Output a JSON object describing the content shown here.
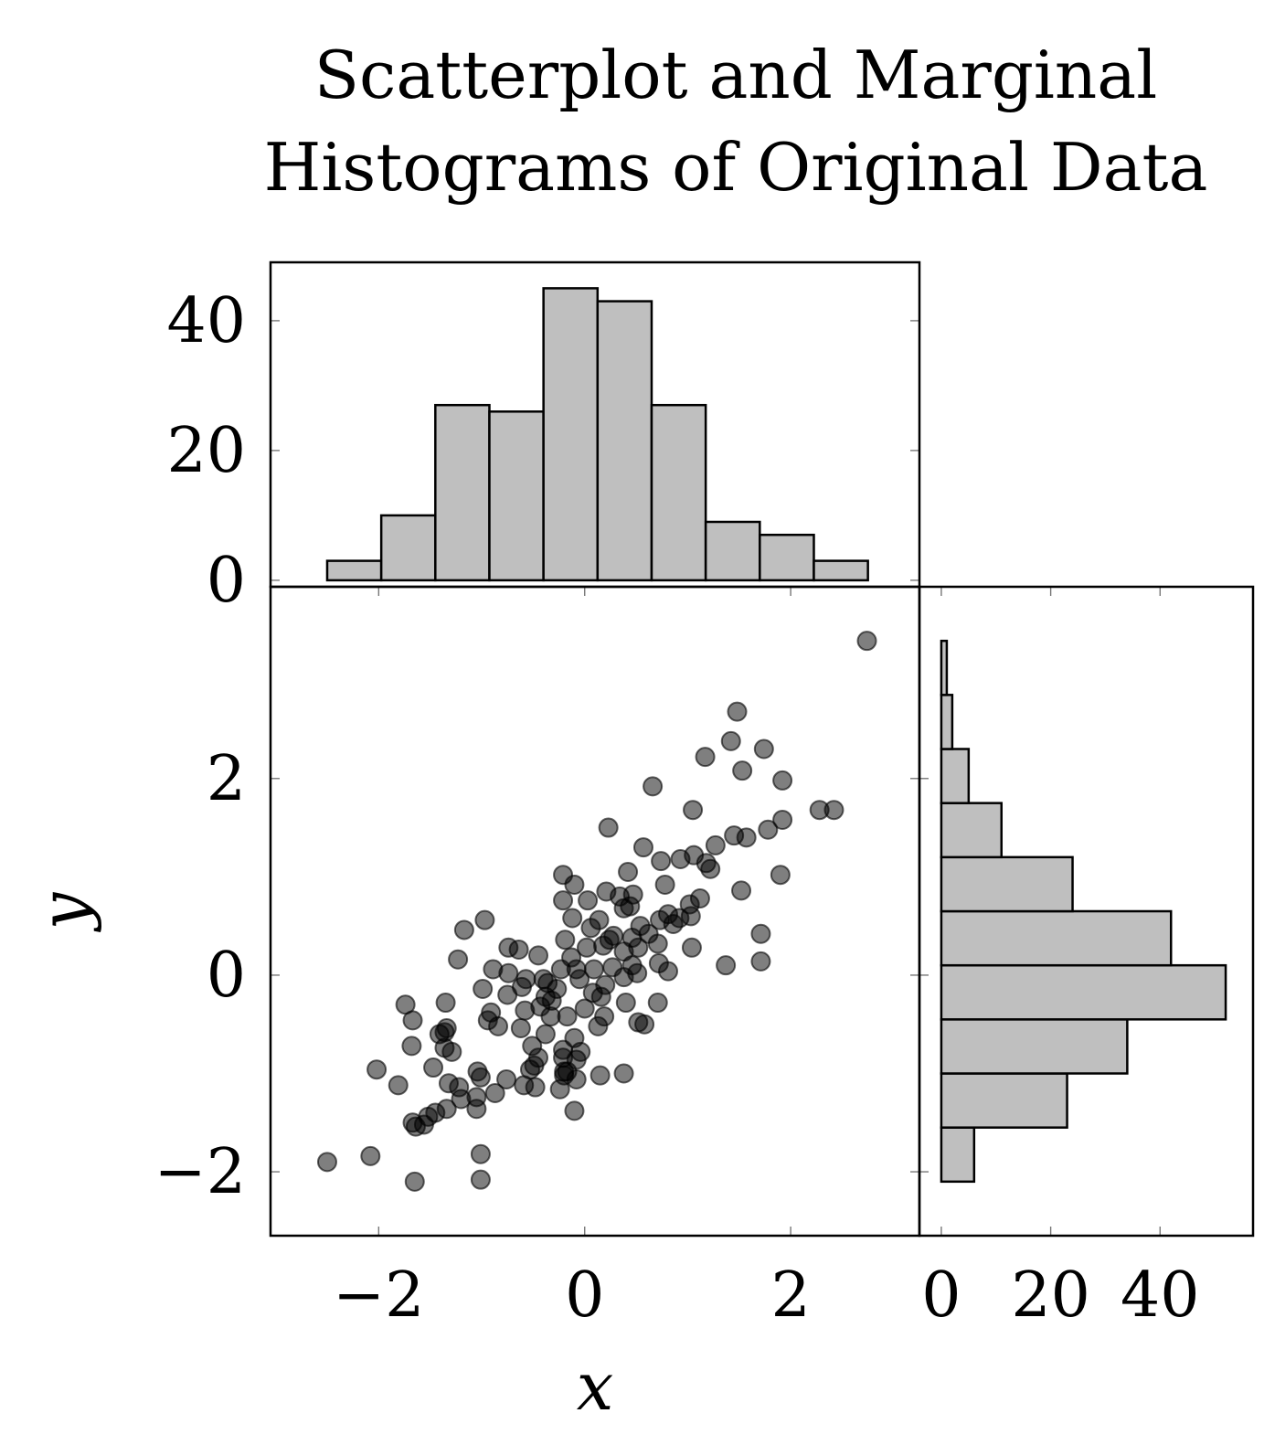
{
  "title_line1": "Scatterplot and Marginal",
  "title_line2": "Histograms of Original Data",
  "chart_data": [
    {
      "type": "scatter",
      "xlabel": "x",
      "ylabel": "y",
      "xlim": [
        -3.05,
        3.25
      ],
      "ylim": [
        -2.65,
        3.95
      ],
      "xticks": [
        -2,
        0,
        2
      ],
      "yticks": [
        -2,
        0,
        2
      ],
      "xtick_labels": [
        "−2",
        "0",
        "2"
      ],
      "ytick_labels": [
        "−2",
        "0",
        "2"
      ],
      "points": [
        [
          2.74,
          3.4
        ],
        [
          1.48,
          2.68
        ],
        [
          1.42,
          2.38
        ],
        [
          1.74,
          2.3
        ],
        [
          1.17,
          2.22
        ],
        [
          1.53,
          2.08
        ],
        [
          1.92,
          1.98
        ],
        [
          0.66,
          1.92
        ],
        [
          1.05,
          1.68
        ],
        [
          2.28,
          1.68
        ],
        [
          2.42,
          1.68
        ],
        [
          1.92,
          1.58
        ],
        [
          0.23,
          1.5
        ],
        [
          1.78,
          1.48
        ],
        [
          1.45,
          1.42
        ],
        [
          1.57,
          1.4
        ],
        [
          1.27,
          1.32
        ],
        [
          0.57,
          1.3
        ],
        [
          1.06,
          1.22
        ],
        [
          0.93,
          1.18
        ],
        [
          0.74,
          1.16
        ],
        [
          1.18,
          1.14
        ],
        [
          1.22,
          1.08
        ],
        [
          0.42,
          1.05
        ],
        [
          1.9,
          1.02
        ],
        [
          1.52,
          0.86
        ],
        [
          -0.21,
          1.02
        ],
        [
          -0.1,
          0.92
        ],
        [
          0.78,
          0.92
        ],
        [
          0.21,
          0.85
        ],
        [
          0.47,
          0.82
        ],
        [
          0.34,
          0.8
        ],
        [
          0.03,
          0.76
        ],
        [
          -0.21,
          0.76
        ],
        [
          1.12,
          0.78
        ],
        [
          1.02,
          0.72
        ],
        [
          0.44,
          0.7
        ],
        [
          0.38,
          0.68
        ],
        [
          0.81,
          0.62
        ],
        [
          0.92,
          0.58
        ],
        [
          1.03,
          0.6
        ],
        [
          0.73,
          0.56
        ],
        [
          0.86,
          0.52
        ],
        [
          0.14,
          0.56
        ],
        [
          -0.12,
          0.58
        ],
        [
          0.54,
          0.5
        ],
        [
          0.06,
          0.48
        ],
        [
          0.62,
          0.42
        ],
        [
          0.28,
          0.4
        ],
        [
          0.46,
          0.38
        ],
        [
          0.24,
          0.36
        ],
        [
          -0.19,
          0.36
        ],
        [
          0.71,
          0.32
        ],
        [
          0.18,
          0.3
        ],
        [
          0.52,
          0.28
        ],
        [
          0.02,
          0.28
        ],
        [
          1.04,
          0.28
        ],
        [
          1.71,
          0.42
        ],
        [
          -1.17,
          0.46
        ],
        [
          -0.97,
          0.56
        ],
        [
          -0.64,
          0.26
        ],
        [
          -0.74,
          0.28
        ],
        [
          -0.45,
          0.2
        ],
        [
          -0.13,
          0.18
        ],
        [
          0.38,
          0.24
        ],
        [
          0.72,
          0.12
        ],
        [
          -1.23,
          0.16
        ],
        [
          0.46,
          0.1
        ],
        [
          0.27,
          0.08
        ],
        [
          1.37,
          0.1
        ],
        [
          1.71,
          0.14
        ],
        [
          0.81,
          0.04
        ],
        [
          0.09,
          0.06
        ],
        [
          -0.08,
          0.06
        ],
        [
          -0.23,
          0.06
        ],
        [
          -0.89,
          0.06
        ],
        [
          -0.74,
          0.02
        ],
        [
          -0.57,
          -0.04
        ],
        [
          -0.4,
          -0.04
        ],
        [
          -0.36,
          -0.08
        ],
        [
          -0.05,
          -0.04
        ],
        [
          0.38,
          -0.02
        ],
        [
          0.51,
          0.02
        ],
        [
          0.2,
          -0.1
        ],
        [
          -0.61,
          -0.12
        ],
        [
          -0.99,
          -0.14
        ],
        [
          -0.27,
          -0.14
        ],
        [
          0.08,
          -0.18
        ],
        [
          -0.75,
          -0.2
        ],
        [
          -0.38,
          -0.22
        ],
        [
          -0.32,
          -0.26
        ],
        [
          0.16,
          -0.22
        ],
        [
          -1.35,
          -0.28
        ],
        [
          -1.74,
          -0.3
        ],
        [
          0.71,
          -0.28
        ],
        [
          0.4,
          -0.28
        ],
        [
          -0.43,
          -0.32
        ],
        [
          0.0,
          -0.34
        ],
        [
          -0.58,
          -0.36
        ],
        [
          -0.91,
          -0.38
        ],
        [
          -1.67,
          -0.46
        ],
        [
          -0.33,
          -0.42
        ],
        [
          -0.94,
          -0.46
        ],
        [
          0.19,
          -0.42
        ],
        [
          -0.17,
          -0.42
        ],
        [
          0.52,
          -0.48
        ],
        [
          0.58,
          -0.5
        ],
        [
          -1.34,
          -0.54
        ],
        [
          -1.36,
          -0.58
        ],
        [
          0.13,
          -0.52
        ],
        [
          -0.84,
          -0.52
        ],
        [
          -0.62,
          -0.54
        ],
        [
          -0.38,
          -0.6
        ],
        [
          -1.41,
          -0.6
        ],
        [
          -0.1,
          -0.64
        ],
        [
          -1.68,
          -0.72
        ],
        [
          -0.51,
          -0.72
        ],
        [
          -1.36,
          -0.74
        ],
        [
          -1.29,
          -0.78
        ],
        [
          -0.21,
          -0.76
        ],
        [
          -0.45,
          -0.84
        ],
        [
          -0.49,
          -0.92
        ],
        [
          -0.21,
          -0.84
        ],
        [
          -0.08,
          -0.86
        ],
        [
          -0.53,
          -0.96
        ],
        [
          -1.47,
          -0.94
        ],
        [
          -2.02,
          -0.96
        ],
        [
          -0.2,
          -0.98
        ],
        [
          -1.04,
          -0.98
        ],
        [
          -0.2,
          -1.02
        ],
        [
          0.38,
          -1.0
        ],
        [
          0.15,
          -1.02
        ],
        [
          -1.01,
          -1.04
        ],
        [
          -0.76,
          -1.06
        ],
        [
          -0.08,
          -1.06
        ],
        [
          -1.81,
          -1.12
        ],
        [
          -1.32,
          -1.1
        ],
        [
          -1.22,
          -1.14
        ],
        [
          -0.59,
          -1.12
        ],
        [
          -0.48,
          -1.14
        ],
        [
          -0.24,
          -1.16
        ],
        [
          -0.87,
          -1.2
        ],
        [
          -1.05,
          -1.24
        ],
        [
          -1.2,
          -1.26
        ],
        [
          -1.05,
          -1.36
        ],
        [
          -1.34,
          -1.36
        ],
        [
          -1.45,
          -1.4
        ],
        [
          -1.52,
          -1.44
        ],
        [
          -1.67,
          -1.5
        ],
        [
          -1.56,
          -1.52
        ],
        [
          -1.64,
          -1.54
        ],
        [
          -1.01,
          -1.82
        ],
        [
          -2.08,
          -1.84
        ],
        [
          -2.5,
          -1.9
        ],
        [
          -1.65,
          -2.1
        ],
        [
          -1.01,
          -2.08
        ],
        [
          -0.1,
          -1.38
        ],
        [
          -0.04,
          -0.78
        ],
        [
          -0.17,
          -0.98
        ]
      ]
    },
    {
      "type": "bar",
      "title": "",
      "xlabel": "",
      "ylabel": "",
      "orientation": "vertical",
      "bin_edges": [
        -2.5,
        -1.975,
        -1.45,
        -0.925,
        -0.4,
        0.125,
        0.65,
        1.175,
        1.7,
        2.225,
        2.75
      ],
      "values": [
        3,
        10,
        27,
        26,
        45,
        43,
        27,
        9,
        7,
        3
      ],
      "ylim": [
        -1,
        49
      ],
      "yticks": [
        0,
        20,
        40
      ],
      "ytick_labels": [
        "0",
        "20",
        "40"
      ]
    },
    {
      "type": "bar",
      "title": "",
      "xlabel": "",
      "ylabel": "",
      "orientation": "horizontal",
      "bin_edges": [
        -2.1,
        -1.55,
        -1.0,
        -0.45,
        0.1,
        0.65,
        1.2,
        1.75,
        2.3,
        2.85,
        3.4
      ],
      "values": [
        6,
        23,
        34,
        52,
        42,
        24,
        11,
        5,
        2,
        1
      ],
      "xlim": [
        -4,
        57
      ],
      "xticks": [
        0,
        20,
        40
      ],
      "xtick_labels": [
        "0",
        "20",
        "40"
      ]
    }
  ]
}
